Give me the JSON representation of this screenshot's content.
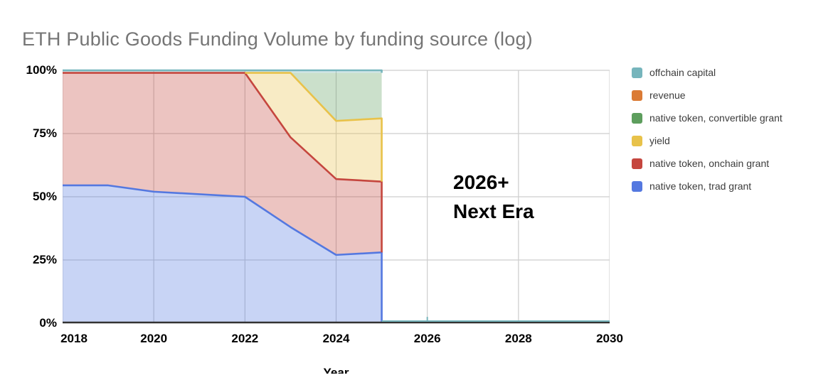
{
  "title": "ETH Public Goods Funding Volume by funding source (log)",
  "annotation": {
    "line1": "2026+",
    "line2": "Next Era"
  },
  "x_axis_title": "Year",
  "axes": {
    "y_ticks": [
      {
        "label": "100%",
        "value": 100
      },
      {
        "label": "75%",
        "value": 75
      },
      {
        "label": "50%",
        "value": 50
      },
      {
        "label": "25%",
        "value": 25
      },
      {
        "label": "0%",
        "value": 0
      }
    ],
    "x_ticks": [
      {
        "label": "2018",
        "year": 2018
      },
      {
        "label": "2020",
        "year": 2020
      },
      {
        "label": "2022",
        "year": 2022
      },
      {
        "label": "2024",
        "year": 2024
      },
      {
        "label": "2026",
        "year": 2026
      },
      {
        "label": "2028",
        "year": 2028
      },
      {
        "label": "2030",
        "year": 2030
      }
    ]
  },
  "legend": [
    {
      "label": "offchain capital",
      "color": "#76b5bc"
    },
    {
      "label": "revenue",
      "color": "#db7b35"
    },
    {
      "label": "native token, convertible grant",
      "color": "#5d9e5d"
    },
    {
      "label": "yield",
      "color": "#e8c24a"
    },
    {
      "label": "native token, onchain grant",
      "color": "#c5463e"
    },
    {
      "label": "native token, trad grant",
      "color": "#5478e0"
    }
  ],
  "colors": {
    "grid": "#cdcdcd",
    "axis": "#333333",
    "title_text": "#757575",
    "annotation_text": "#000000"
  },
  "chart_data": {
    "type": "area",
    "subtype": "100%-stacked, series truncate (drop to 0) after 2025; offchain capital line continues along 0% axis to 2030",
    "title": "ETH Public Goods Funding Volume by funding source (log)",
    "xlabel": "Year",
    "ylabel": "",
    "x_range": [
      2018,
      2030
    ],
    "y_range_percent": [
      0,
      100
    ],
    "grid": true,
    "legend_position": "right",
    "x": [
      2018,
      2019,
      2020,
      2021,
      2022,
      2023,
      2024,
      2025
    ],
    "series_end_year": 2025,
    "series": [
      {
        "name": "native token, trad grant",
        "color": "#5478e0",
        "values": [
          54.5,
          54.5,
          52,
          51,
          50,
          38,
          27,
          28
        ],
        "stroke": true,
        "stroke_from": 2018
      },
      {
        "name": "native token, onchain grant",
        "color": "#c5463e",
        "values": [
          44.5,
          44.5,
          47,
          48,
          49,
          35.5,
          30,
          28
        ],
        "stroke": true,
        "stroke_from": 2018
      },
      {
        "name": "yield",
        "color": "#e8c24a",
        "values": [
          0,
          0,
          0,
          0,
          0,
          25.5,
          23,
          25
        ],
        "stroke": true,
        "stroke_from": 2022
      },
      {
        "name": "native token, convertible grant",
        "color": "#5d9e5d",
        "values": [
          0,
          0,
          0,
          0,
          0,
          0,
          19,
          18
        ],
        "stroke": false,
        "stroke_from": null
      },
      {
        "name": "revenue",
        "color": "#db7b35",
        "values": [
          0,
          0,
          0,
          0,
          0,
          0,
          0,
          0
        ],
        "stroke": false,
        "stroke_from": null
      },
      {
        "name": "offchain capital",
        "color": "#76b5bc",
        "values": [
          1,
          1,
          1,
          1,
          1,
          1,
          1,
          1
        ],
        "stroke": true,
        "stroke_from": 2018,
        "axis_continuation": {
          "from": 2025,
          "to": 2030,
          "tick_at": 2026
        }
      }
    ],
    "annotation": {
      "text": "2026+ Next Era",
      "near_x": 2026.5,
      "near_y_percent": 50
    }
  }
}
